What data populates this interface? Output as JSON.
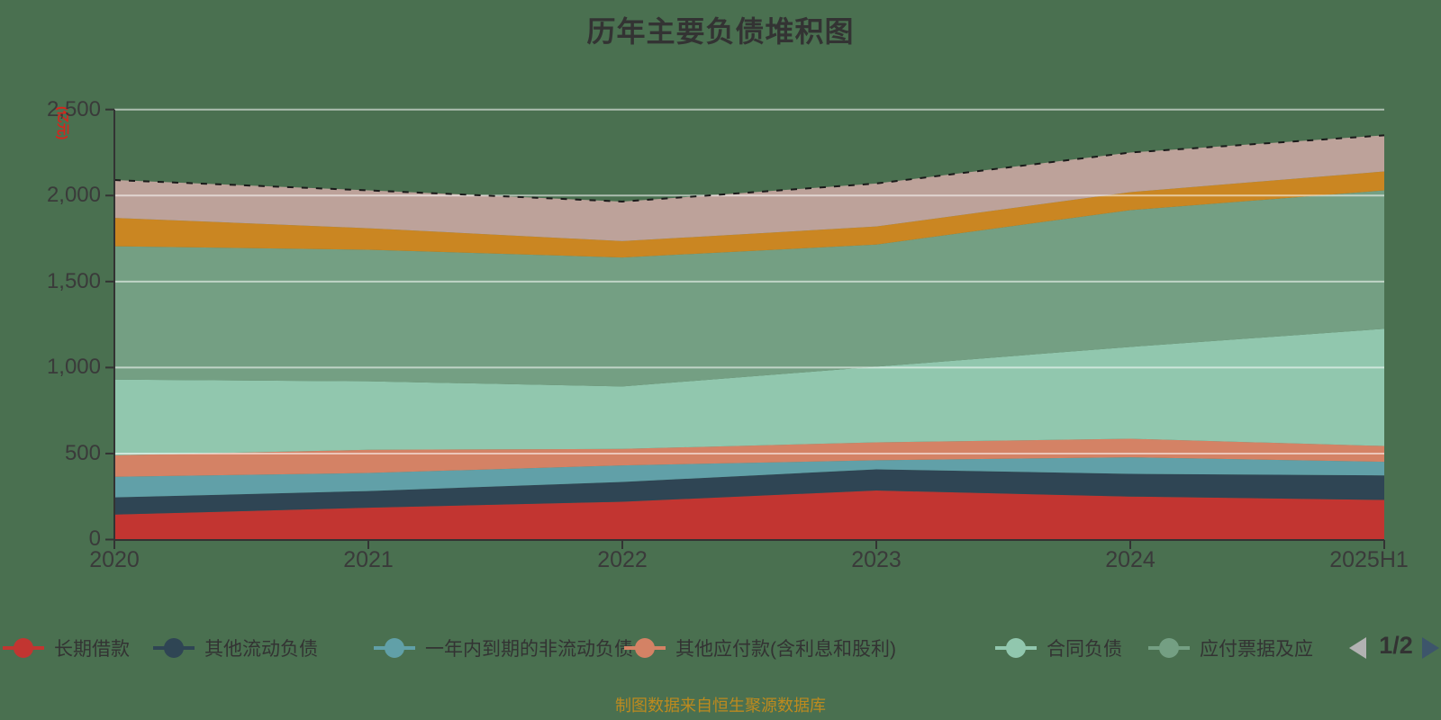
{
  "title": "历年主要负债堆积图",
  "y_axis_unit": "(亿元)",
  "source_note": "制图数据来自恒生聚源数据库",
  "legend": {
    "page_indicator": "1/2",
    "items": [
      {
        "label": "长期借款",
        "color": "#c23531"
      },
      {
        "label": "其他流动负债",
        "color": "#2f4554"
      },
      {
        "label": "一年内到期的非流动负债",
        "color": "#61a0a8"
      },
      {
        "label": "其他应付款(含利息和股利)",
        "color": "#d48265"
      },
      {
        "label": "合同负债",
        "color": "#91c7ae"
      },
      {
        "label": "应付票据及应",
        "color": "#749f83"
      }
    ]
  },
  "chart_data": {
    "type": "area",
    "stacked": true,
    "title": "历年主要负债堆积图",
    "ylabel": "(亿元)",
    "ylim": [
      0,
      2500
    ],
    "yticks": [
      "0",
      "500",
      "1,000",
      "1,500",
      "2,000",
      "2,500"
    ],
    "grid": true,
    "legend_position": "bottom",
    "categories": [
      "2020",
      "2021",
      "2022",
      "2023",
      "2024",
      "2025H1"
    ],
    "series": [
      {
        "id": "changqi-jiekuan",
        "name": "长期借款",
        "color": "#c23531",
        "values": [
          145,
          185,
          220,
          285,
          250,
          230
        ]
      },
      {
        "id": "qita-liudong-fuzhai",
        "name": "其他流动负债",
        "color": "#2f4554",
        "values": [
          100,
          97,
          115,
          123,
          132,
          143
        ]
      },
      {
        "id": "yiniannei-daoqi-feiliudong-fuzhai",
        "name": "一年内到期的非流动负债",
        "color": "#61a0a8",
        "values": [
          120,
          105,
          96,
          53,
          96,
          79
        ]
      },
      {
        "id": "qita-yingfukuan",
        "name": "其他应付款(含利息和股利)",
        "color": "#d48265",
        "values": [
          125,
          135,
          96,
          104,
          108,
          92
        ]
      },
      {
        "id": "hetong-fuzhai",
        "name": "合同负债",
        "color": "#91c7ae",
        "values": [
          440,
          398,
          363,
          440,
          534,
          681
        ]
      },
      {
        "id": "yingfu-piaoju",
        "name": "应付票据及应",
        "color": "#749f83",
        "values": [
          775,
          765,
          750,
          710,
          795,
          805
        ]
      },
      {
        "id": "legend-page-2-series-a",
        "name": "",
        "visible_in_legend": false,
        "color": "#ca8622",
        "values": [
          165,
          125,
          95,
          105,
          105,
          110
        ]
      },
      {
        "id": "legend-page-2-series-b",
        "name": "",
        "visible_in_legend": false,
        "color": "#bda29a",
        "values": [
          220,
          220,
          230,
          250,
          230,
          210
        ]
      }
    ],
    "totals": [
      2090,
      2030,
      1965,
      2070,
      2250,
      2350
    ],
    "total_boundary_line": {
      "style": "dashed",
      "color": "#1a1a1a"
    }
  },
  "colors": {
    "background": "#4a7050",
    "axis": "#333333",
    "gridline": "rgba(255,255,255,0.55)",
    "unit_label": "#d8231b",
    "caption": "#bd8a1e",
    "pager_prev": "#b2b2b2",
    "pager_next": "#3d556b"
  }
}
